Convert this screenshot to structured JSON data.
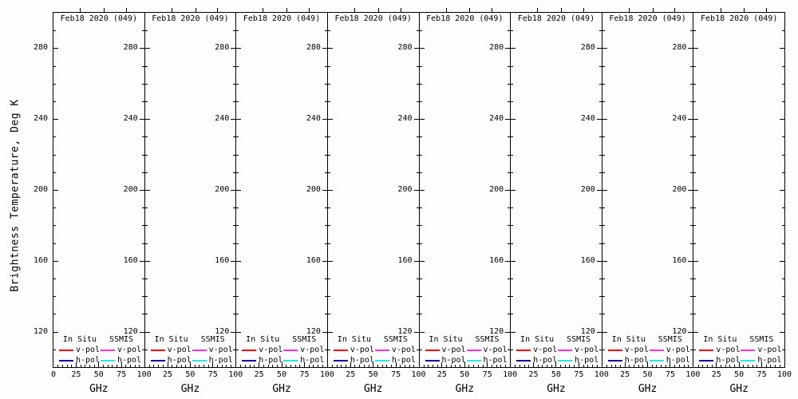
{
  "figure": {
    "background": "#fdfdfd",
    "panel_count": 8,
    "panel_title": "Feb18 2020 (049)",
    "y_axis": {
      "title": "Brightness Temperature, Deg K",
      "tick_labels": [
        "280",
        "240",
        "200",
        "160",
        "120"
      ],
      "tick_values": [
        280,
        240,
        200,
        160,
        120
      ]
    },
    "x_axis": {
      "title": "GHz",
      "tick_labels": [
        "0",
        "25",
        "50",
        "75",
        "100"
      ],
      "tick_values": [
        0,
        25,
        50,
        75,
        100
      ]
    },
    "legend": {
      "columns": [
        {
          "header": "In Situ",
          "entries": [
            {
              "label": "v-pol",
              "color": "#ee0000"
            },
            {
              "label": "h-pol",
              "color": "#0000a0"
            }
          ]
        },
        {
          "header": "SSMIS",
          "entries": [
            {
              "label": "v-pol",
              "color": "#ff2fd2"
            },
            {
              "label": "h-pol",
              "color": "#26e8e8"
            }
          ]
        }
      ]
    }
  },
  "chart_data": {
    "type": "line",
    "layout": "1x8 identical panels side by side",
    "panels": 8,
    "panel_title": "Feb18 2020 (049)",
    "title": "Feb18 2020 (049)",
    "xlabel": "GHz",
    "ylabel": "Brightness Temperature, Deg K",
    "xlim": [
      0,
      100
    ],
    "ylim": [
      100,
      300
    ],
    "xticks": [
      0,
      25,
      50,
      75,
      100
    ],
    "yticks": [
      120,
      160,
      200,
      240,
      280
    ],
    "x_minor_step": 5,
    "y_minor_step": 10,
    "grid": false,
    "legend_position": "bottom-inside",
    "series": [
      {
        "name": "In Situ v-pol",
        "color": "#ee0000",
        "x": [],
        "y": []
      },
      {
        "name": "In Situ h-pol",
        "color": "#0000a0",
        "x": [],
        "y": []
      },
      {
        "name": "SSMIS v-pol",
        "color": "#ff2fd2",
        "x": [],
        "y": []
      },
      {
        "name": "SSMIS h-pol",
        "color": "#26e8e8",
        "x": [],
        "y": []
      }
    ],
    "note": "All eight panels are empty of data curves; only axes, per-panel titles and legends are rendered."
  }
}
